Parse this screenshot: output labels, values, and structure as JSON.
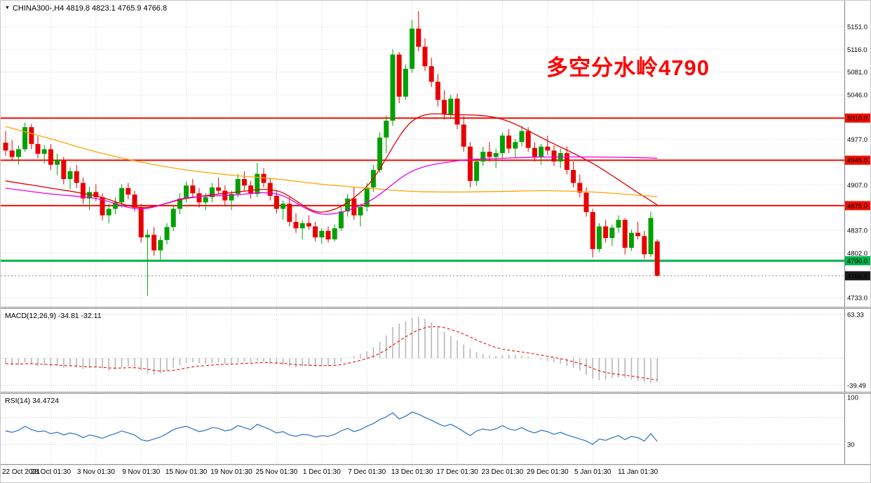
{
  "header": {
    "dropdown_icon": "▼",
    "symbol_text": "CHINA300-,H4 4819.8 4823.1 4765.9 4766.8"
  },
  "annotation": {
    "text": "多空分水岭4790",
    "color": "#FF0000"
  },
  "panels": {
    "macd_label": "MACD(12,26,9) -34.81 -32.11",
    "rsi_label": "RSI(14) 34.4724"
  },
  "colors": {
    "up": "#00A000",
    "down": "#E80000",
    "grid": "#D4D4D4",
    "axis_line": "#808080",
    "macd_hist": "#B8B8B8",
    "macd_signal": "#EE1100",
    "rsi_line": "#2970C8",
    "level_dotted": "#C8C8C8",
    "current": "#1A1A1A"
  },
  "chart_data": {
    "type": "candlestick",
    "symbol": "CHINA300-",
    "timeframe": "H4",
    "title": "CHINA300- H4 with MACD(12,26,9) and RSI(14)",
    "ohlc_current": {
      "open": 4819.8,
      "high": 4823.1,
      "low": 4765.9,
      "close": 4766.8
    },
    "x_ticks": {
      "labels": [
        "22 Oct 2021",
        "28 Oct 01:30",
        "3 Nov 01:30",
        "9 Nov 01:30",
        "15 Nov 01:30",
        "19 Nov 01:30",
        "25 Nov 01:30",
        "1 Dec 01:30",
        "7 Dec 01:30",
        "13 Dec 01:30",
        "17 Dec 01:30",
        "23 Dec 01:30",
        "29 Dec 01:30",
        "5 Jan 01:30",
        "11 Jan 01:30"
      ],
      "candle_index": [
        0,
        7,
        14,
        21,
        28,
        35,
        42,
        49,
        56,
        63,
        70,
        77,
        84,
        91,
        98
      ]
    },
    "price_axis": {
      "range": [
        4719,
        5191
      ],
      "grid_labels": [
        5151.0,
        5116.0,
        5081.0,
        5046.0,
        4977.0,
        4907.0,
        4837.0,
        4802.0,
        4733.0
      ]
    },
    "hlines": [
      {
        "price": 5010.0,
        "label": "5010.0",
        "color": "#EE1100",
        "width": 2
      },
      {
        "price": 4945.0,
        "label": "4945.0",
        "color": "#EE1100",
        "width": 2
      },
      {
        "price": 4875.0,
        "label": "4875.0",
        "color": "#EE1100",
        "width": 2
      },
      {
        "price": 4790.0,
        "label": "4790.0",
        "color": "#00B44A",
        "width": 3
      }
    ],
    "current_price": {
      "value": 4766.8,
      "label": "4766.8"
    },
    "candles": [
      [
        4972,
        4990,
        4952,
        4960
      ],
      [
        4960,
        4976,
        4945,
        4950
      ],
      [
        4950,
        4968,
        4938,
        4962
      ],
      [
        4962,
        5003,
        4958,
        4996
      ],
      [
        4996,
        5001,
        4962,
        4970
      ],
      [
        4970,
        4982,
        4948,
        4955
      ],
      [
        4955,
        4968,
        4940,
        4962
      ],
      [
        4962,
        4970,
        4930,
        4938
      ],
      [
        4938,
        4955,
        4922,
        4945
      ],
      [
        4945,
        4950,
        4908,
        4916
      ],
      [
        4916,
        4934,
        4900,
        4928
      ],
      [
        4928,
        4938,
        4902,
        4910
      ],
      [
        4910,
        4918,
        4878,
        4886
      ],
      [
        4886,
        4904,
        4868,
        4896
      ],
      [
        4896,
        4908,
        4882,
        4888
      ],
      [
        4888,
        4894,
        4852,
        4860
      ],
      [
        4860,
        4878,
        4848,
        4870
      ],
      [
        4870,
        4888,
        4862,
        4880
      ],
      [
        4880,
        4908,
        4872,
        4902
      ],
      [
        4902,
        4910,
        4885,
        4892
      ],
      [
        4892,
        4898,
        4866,
        4872
      ],
      [
        4872,
        4878,
        4818,
        4826
      ],
      [
        4826,
        4838,
        4736,
        4830
      ],
      [
        4830,
        4842,
        4798,
        4806
      ],
      [
        4806,
        4828,
        4792,
        4822
      ],
      [
        4822,
        4848,
        4815,
        4842
      ],
      [
        4842,
        4876,
        4836,
        4870
      ],
      [
        4870,
        4894,
        4862,
        4886
      ],
      [
        4886,
        4912,
        4880,
        4906
      ],
      [
        4906,
        4916,
        4888,
        4894
      ],
      [
        4894,
        4902,
        4872,
        4880
      ],
      [
        4880,
        4894,
        4868,
        4888
      ],
      [
        4888,
        4910,
        4880,
        4903
      ],
      [
        4903,
        4918,
        4893,
        4898
      ],
      [
        4898,
        4906,
        4876,
        4883
      ],
      [
        4883,
        4898,
        4868,
        4893
      ],
      [
        4893,
        4924,
        4888,
        4916
      ],
      [
        4916,
        4928,
        4898,
        4906
      ],
      [
        4906,
        4913,
        4886,
        4893
      ],
      [
        4893,
        4941,
        4888,
        4924
      ],
      [
        4924,
        4933,
        4903,
        4910
      ],
      [
        4910,
        4918,
        4883,
        4890
      ],
      [
        4890,
        4898,
        4863,
        4870
      ],
      [
        4870,
        4883,
        4853,
        4878
      ],
      [
        4878,
        4888,
        4843,
        4850
      ],
      [
        4850,
        4863,
        4833,
        4840
      ],
      [
        4840,
        4853,
        4823,
        4848
      ],
      [
        4848,
        4860,
        4838,
        4843
      ],
      [
        4843,
        4850,
        4820,
        4826
      ],
      [
        4826,
        4840,
        4816,
        4836
      ],
      [
        4836,
        4843,
        4818,
        4823
      ],
      [
        4823,
        4846,
        4820,
        4840
      ],
      [
        4840,
        4873,
        4836,
        4866
      ],
      [
        4866,
        4893,
        4858,
        4886
      ],
      [
        4886,
        4903,
        4853,
        4860
      ],
      [
        4860,
        4878,
        4843,
        4873
      ],
      [
        4873,
        4910,
        4866,
        4903
      ],
      [
        4903,
        4938,
        4896,
        4930
      ],
      [
        4930,
        4988,
        4926,
        4980
      ],
      [
        4980,
        5014,
        4956,
        5006
      ],
      [
        5006,
        5116,
        4998,
        5108
      ],
      [
        5108,
        5112,
        5033,
        5043
      ],
      [
        5043,
        5093,
        5038,
        5086
      ],
      [
        5086,
        5161,
        5080,
        5148
      ],
      [
        5148,
        5175,
        5113,
        5120
      ],
      [
        5120,
        5133,
        5083,
        5090
      ],
      [
        5090,
        5103,
        5058,
        5066
      ],
      [
        5066,
        5078,
        5028,
        5038
      ],
      [
        5038,
        5053,
        5008,
        5016
      ],
      [
        5016,
        5046,
        5010,
        5040
      ],
      [
        5040,
        5048,
        4993,
        5000
      ],
      [
        5000,
        5013,
        4958,
        4966
      ],
      [
        4966,
        4973,
        4903,
        4913
      ],
      [
        4913,
        4948,
        4906,
        4943
      ],
      [
        4943,
        4966,
        4936,
        4958
      ],
      [
        4958,
        4973,
        4943,
        4950
      ],
      [
        4950,
        4963,
        4933,
        4956
      ],
      [
        4956,
        4988,
        4948,
        4983
      ],
      [
        4983,
        4993,
        4956,
        4963
      ],
      [
        4963,
        4978,
        4948,
        4973
      ],
      [
        4973,
        4998,
        4966,
        4990
      ],
      [
        4990,
        4996,
        4958,
        4964
      ],
      [
        4964,
        4973,
        4943,
        4950
      ],
      [
        4950,
        4970,
        4938,
        4966
      ],
      [
        4966,
        4983,
        4953,
        4960
      ],
      [
        4960,
        4968,
        4936,
        4943
      ],
      [
        4943,
        4963,
        4933,
        4956
      ],
      [
        4956,
        4966,
        4923,
        4930
      ],
      [
        4930,
        4943,
        4903,
        4910
      ],
      [
        4910,
        4923,
        4888,
        4895
      ],
      [
        4895,
        4903,
        4858,
        4865
      ],
      [
        4865,
        4870,
        4795,
        4808
      ],
      [
        4808,
        4848,
        4803,
        4843
      ],
      [
        4843,
        4853,
        4818,
        4825
      ],
      [
        4825,
        4846,
        4813,
        4841
      ],
      [
        4841,
        4860,
        4833,
        4853
      ],
      [
        4853,
        4856,
        4800,
        4810
      ],
      [
        4810,
        4838,
        4805,
        4833
      ],
      [
        4833,
        4850,
        4823,
        4828
      ],
      [
        4828,
        4836,
        4793,
        4800
      ],
      [
        4800,
        4866,
        4796,
        4856
      ],
      [
        4819.8,
        4823.1,
        4765.9,
        4766.8
      ]
    ],
    "moving_averages": {
      "sample_index": [
        0,
        7,
        14,
        21,
        28,
        35,
        42,
        49,
        56,
        63,
        70,
        77,
        84,
        91,
        98,
        101
      ],
      "series": [
        {
          "name": "ma-fast-red",
          "color": "#E00000",
          "values": [
            4913,
            4902,
            4890,
            4872,
            4886,
            4895,
            4898,
            4865,
            4905,
            5005,
            5015,
            5008,
            4975,
            4940,
            4895,
            4876
          ]
        },
        {
          "name": "ma-slow-orange",
          "color": "#FFA500",
          "values": [
            4997,
            4978,
            4958,
            4942,
            4930,
            4922,
            4916,
            4908,
            4902,
            4897,
            4896,
            4897,
            4898,
            4896,
            4891,
            4889
          ]
        },
        {
          "name": "ma-mid-magenta",
          "color": "#E800E8",
          "values": [
            4902,
            4893,
            4886,
            4870,
            4887,
            4891,
            4893,
            4862,
            4880,
            4928,
            4944,
            4948,
            4950,
            4950,
            4949,
            4948
          ]
        }
      ]
    },
    "macd": {
      "label": "MACD(12,26,9)",
      "value_main": -34.81,
      "value_signal": -32.11,
      "scale_max": 63.33,
      "scale_min": -39.49,
      "signal_period": 9,
      "histogram": [
        -8,
        -10,
        -9,
        -6,
        -8,
        -11,
        -10,
        -12,
        -11,
        -14,
        -12,
        -13,
        -16,
        -14,
        -13,
        -15,
        -18,
        -16,
        -13,
        -12,
        -14,
        -18,
        -22,
        -24,
        -22,
        -18,
        -14,
        -10,
        -7,
        -6,
        -7,
        -8,
        -7,
        -6,
        -8,
        -8,
        -6,
        -5,
        -6,
        -4,
        -5,
        -7,
        -9,
        -10,
        -12,
        -13,
        -12,
        -11,
        -12,
        -12,
        -11,
        -9,
        -5,
        0,
        3,
        6,
        10,
        16,
        24,
        33,
        45,
        50,
        54,
        58,
        60,
        57,
        52,
        46,
        38,
        32,
        26,
        20,
        14,
        9,
        6,
        4,
        3,
        4,
        5,
        5,
        4,
        2,
        0,
        -2,
        -4,
        -6,
        -8,
        -11,
        -14,
        -18,
        -24,
        -30,
        -32,
        -31,
        -29,
        -28,
        -29,
        -31,
        -33,
        -35,
        -36,
        -34.81
      ]
    },
    "rsi": {
      "label": "RSI(14)",
      "value": 34.4724,
      "scale_max": 100,
      "scale_min_label": 30,
      "levels": [
        70,
        30
      ],
      "values": [
        50,
        48,
        51,
        57,
        52,
        49,
        50,
        46,
        48,
        44,
        47,
        45,
        40,
        44,
        42,
        39,
        43,
        46,
        50,
        47,
        44,
        37,
        35,
        38,
        41,
        46,
        52,
        55,
        57,
        53,
        49,
        51,
        55,
        54,
        50,
        52,
        58,
        55,
        52,
        60,
        56,
        52,
        47,
        49,
        44,
        42,
        45,
        44,
        41,
        43,
        42,
        45,
        50,
        54,
        49,
        52,
        57,
        61,
        67,
        71,
        77,
        68,
        72,
        78,
        75,
        70,
        66,
        61,
        57,
        60,
        55,
        49,
        43,
        50,
        53,
        51,
        53,
        58,
        53,
        51,
        55,
        50,
        47,
        51,
        49,
        45,
        48,
        44,
        41,
        38,
        35,
        30,
        38,
        36,
        40,
        43,
        37,
        42,
        40,
        35,
        46,
        34.47
      ]
    }
  }
}
